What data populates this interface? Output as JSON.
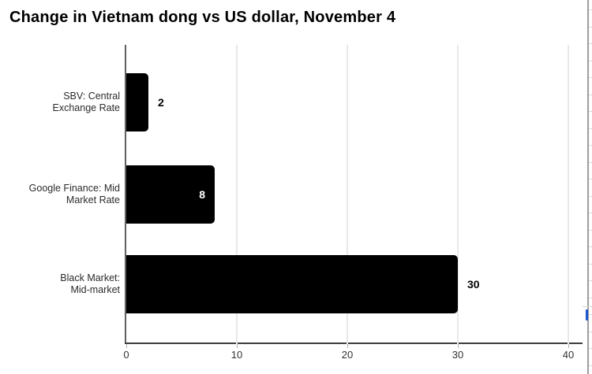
{
  "title": "Change in Vietnam dong vs US dollar, November 4",
  "chart_data": {
    "type": "bar",
    "orientation": "horizontal",
    "title": "Change in Vietnam dong vs US dollar, November 4",
    "categories": [
      "SBV: Central Exchange Rate",
      "Google Finance: Mid Market Rate",
      "Black Market: Mid-market"
    ],
    "category_label_lines": [
      [
        "SBV: Central",
        "Exchange Rate"
      ],
      [
        "Google Finance: Mid",
        "Market Rate"
      ],
      [
        "Black Market:",
        "Mid-market"
      ]
    ],
    "values": [
      2,
      8,
      30
    ],
    "value_labels": [
      "2",
      "8",
      "30"
    ],
    "value_label_placement": [
      "outside",
      "inside",
      "outside"
    ],
    "xlabel": "",
    "ylabel": "",
    "xlim": [
      0,
      40
    ],
    "x_ticks": [
      "0",
      "10",
      "20",
      "30",
      "40"
    ],
    "grid": true,
    "legend": "none"
  },
  "colors": {
    "bar": "#000000",
    "value_label_outside": "#000000",
    "value_label_inside": "#ffffff",
    "gridline": "#e8e8e8",
    "zero_axis": "#616161",
    "baseline": "#3d3d3d",
    "category_label": "#2b2b2b",
    "tick_label": "#333333",
    "panel_border": "#9e9e9e",
    "row_line": "#d9d9d9",
    "link_blue": "#1a56cc"
  }
}
